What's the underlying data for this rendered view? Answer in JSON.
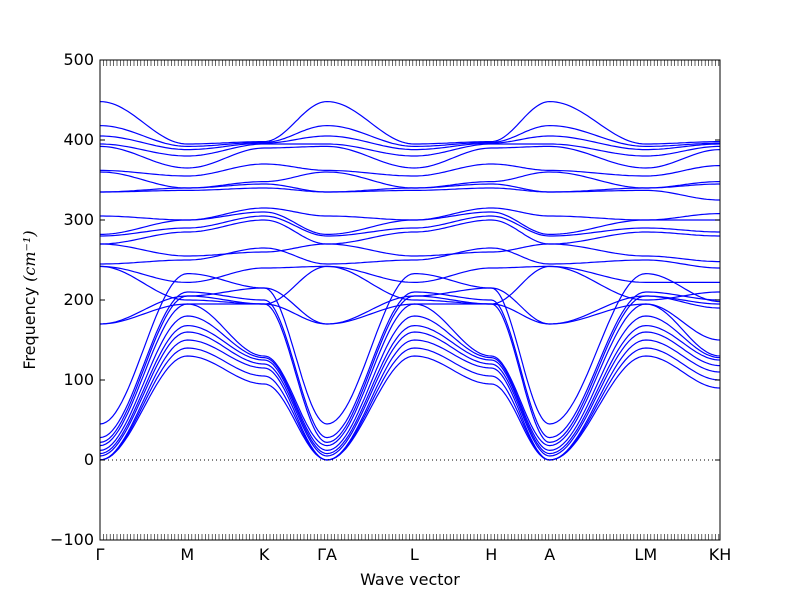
{
  "chart_data": {
    "type": "line",
    "xlabel": "Wave vector",
    "ylabel": "Frequency ",
    "ylabel_unit": "(cm⁻¹)",
    "ylim": [
      -100,
      500
    ],
    "yticks": [
      -100,
      0,
      100,
      200,
      300,
      400,
      500
    ],
    "grid": false,
    "line_color": "#0000ff",
    "zero_line": {
      "y": 0,
      "style": "dotted",
      "color": "#000000"
    },
    "kpath": [
      {
        "label": "Γ",
        "pos": 0.0
      },
      {
        "label": "M",
        "pos": 1.0
      },
      {
        "label": "K",
        "pos": 1.88
      },
      {
        "label": "ΓA",
        "pos": 2.6
      },
      {
        "label": "L",
        "pos": 3.6
      },
      {
        "label": "H",
        "pos": 4.48
      },
      {
        "label": "A",
        "pos": 5.15
      },
      {
        "label": "LM",
        "pos": 6.25
      },
      {
        "label": "KH",
        "pos": 7.1
      }
    ],
    "xlim": [
      0.0,
      7.1
    ],
    "nodes": [
      0.0,
      1.0,
      1.88,
      2.6,
      3.6,
      4.48,
      5.15,
      6.25,
      7.1
    ],
    "series": [
      {
        "values": [
          0,
          130,
          95,
          0,
          130,
          95,
          0,
          130,
          90
        ]
      },
      {
        "values": [
          0,
          140,
          105,
          0,
          140,
          105,
          0,
          140,
          100
        ]
      },
      {
        "values": [
          0,
          150,
          115,
          0,
          150,
          115,
          0,
          150,
          110
        ]
      },
      {
        "values": [
          5,
          160,
          120,
          5,
          160,
          120,
          5,
          160,
          118
        ]
      },
      {
        "values": [
          8,
          168,
          125,
          8,
          168,
          125,
          8,
          168,
          125
        ]
      },
      {
        "values": [
          12,
          180,
          128,
          12,
          180,
          128,
          12,
          180,
          128
        ]
      },
      {
        "values": [
          18,
          195,
          130,
          18,
          195,
          130,
          18,
          195,
          130
        ]
      },
      {
        "values": [
          22,
          205,
          195,
          22,
          205,
          195,
          22,
          205,
          195
        ]
      },
      {
        "values": [
          28,
          210,
          200,
          28,
          210,
          200,
          28,
          210,
          200
        ]
      },
      {
        "values": [
          45,
          233,
          215,
          45,
          233,
          215,
          45,
          233,
          198
        ]
      },
      {
        "values": [
          170,
          195,
          195,
          170,
          195,
          195,
          170,
          195,
          150
        ]
      },
      {
        "values": [
          170,
          205,
          215,
          170,
          205,
          215,
          170,
          205,
          190
        ]
      },
      {
        "values": [
          242,
          200,
          195,
          242,
          200,
          195,
          242,
          200,
          210
        ]
      },
      {
        "values": [
          242,
          222,
          240,
          242,
          222,
          240,
          242,
          222,
          222
        ]
      },
      {
        "values": [
          245,
          250,
          265,
          245,
          250,
          265,
          245,
          250,
          240
        ]
      },
      {
        "values": [
          270,
          255,
          260,
          270,
          255,
          260,
          270,
          255,
          248
        ]
      },
      {
        "values": [
          270,
          285,
          300,
          270,
          285,
          300,
          270,
          285,
          280
        ]
      },
      {
        "values": [
          280,
          290,
          305,
          280,
          290,
          305,
          280,
          290,
          285
        ]
      },
      {
        "values": [
          282,
          300,
          310,
          282,
          300,
          310,
          282,
          300,
          300
        ]
      },
      {
        "values": [
          305,
          300,
          315,
          305,
          300,
          315,
          305,
          300,
          308
        ]
      },
      {
        "values": [
          335,
          337,
          340,
          335,
          337,
          340,
          335,
          337,
          325
        ]
      },
      {
        "values": [
          335,
          340,
          345,
          335,
          340,
          345,
          335,
          340,
          345
        ]
      },
      {
        "values": [
          360,
          340,
          348,
          360,
          340,
          348,
          360,
          340,
          348
        ]
      },
      {
        "values": [
          362,
          355,
          370,
          362,
          355,
          370,
          362,
          355,
          368
        ]
      },
      {
        "values": [
          392,
          365,
          390,
          392,
          365,
          390,
          392,
          365,
          388
        ]
      },
      {
        "values": [
          395,
          380,
          395,
          395,
          380,
          395,
          395,
          380,
          392
        ]
      },
      {
        "values": [
          405,
          388,
          396,
          405,
          388,
          396,
          405,
          388,
          395
        ]
      },
      {
        "values": [
          418,
          392,
          397,
          418,
          392,
          397,
          418,
          392,
          396
        ]
      },
      {
        "values": [
          448,
          395,
          398,
          448,
          395,
          398,
          448,
          395,
          398
        ]
      }
    ]
  }
}
